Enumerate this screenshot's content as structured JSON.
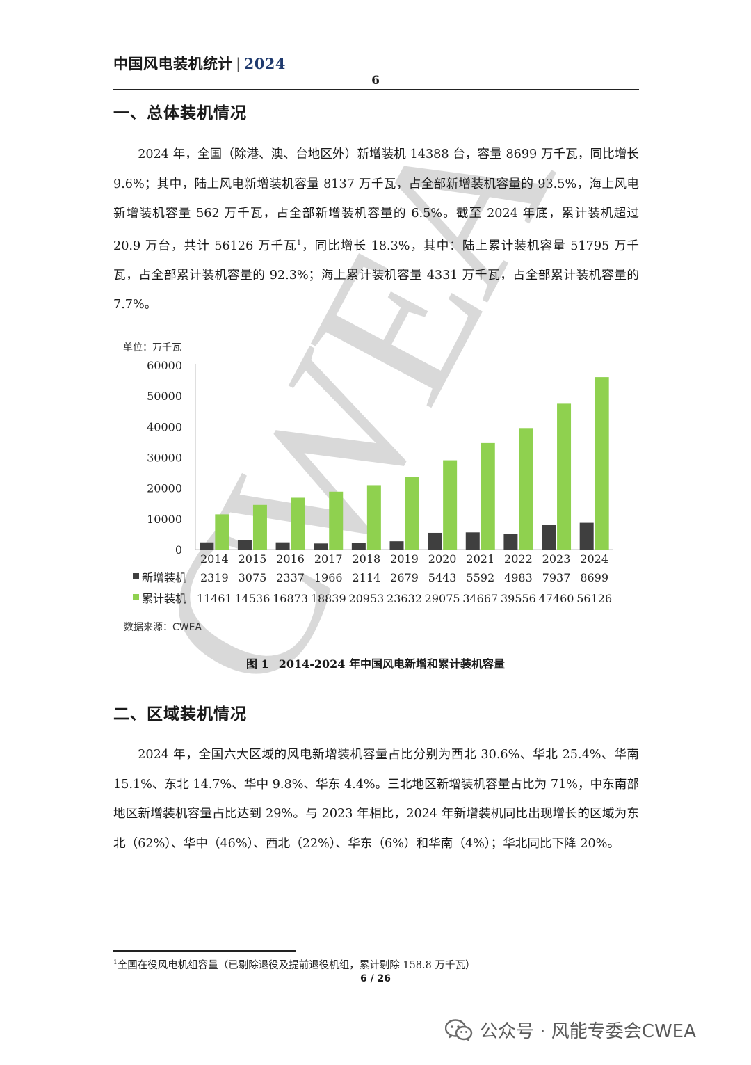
{
  "header": {
    "title": "中国风电装机统计",
    "separator": "|",
    "year": "2024",
    "page_number": "6"
  },
  "section1": {
    "heading": "一、总体装机情况",
    "paragraph_part1": "2024 年，全国（除港、澳、台地区外）新增装机 14388 台，容量 8699 万千瓦，同比增长 9.6%；其中，陆上风电新增装机容量 8137 万千瓦，占全部新增装机容量的 93.5%，海上风电新增装机容量 562 万千瓦，占全部新增装机容量的 6.5%。截至 2024 年底，累计装机超过 20.9 万台，共计 56126 万千瓦",
    "footnote_ref": "1",
    "paragraph_part2": "，同比增长 18.3%，其中：陆上累计装机容量 51795 万千瓦，占全部累计装机容量的 92.3%；海上累计装机容量 4331 万千瓦，占全部累计装机容量的 7.7%。"
  },
  "chart_data": {
    "type": "bar",
    "unit_label": "单位：万千瓦",
    "categories": [
      "2014",
      "2015",
      "2016",
      "2017",
      "2018",
      "2019",
      "2020",
      "2021",
      "2022",
      "2023",
      "2024"
    ],
    "series": [
      {
        "name": "新增装机",
        "color": "#3f3f3f",
        "values": [
          2319,
          3075,
          2337,
          1966,
          2114,
          2679,
          5443,
          5592,
          4983,
          7937,
          8699
        ]
      },
      {
        "name": "累计装机",
        "color": "#8fd14f",
        "values": [
          11461,
          14536,
          16873,
          18839,
          20953,
          23632,
          29075,
          34667,
          39556,
          47460,
          56126
        ]
      }
    ],
    "ylim": [
      0,
      60000
    ],
    "yticks": [
      0,
      10000,
      20000,
      30000,
      40000,
      50000,
      60000
    ],
    "data_table": true,
    "grid": false
  },
  "figure": {
    "source": "数据来源：CWEA",
    "caption_number": "图 1",
    "caption_text": "2014-2024 年中国风电新增和累计装机容量"
  },
  "section2": {
    "heading": "二、区域装机情况",
    "paragraph": "2024 年，全国六大区域的风电新增装机容量占比分别为西北 30.6%、华北 25.4%、华南 15.1%、东北 14.7%、华中 9.8%、华东 4.4%。三北地区新增装机容量占比为 71%，中东南部地区新增装机容量占比达到 29%。与 2023 年相比，2024 年新增装机同比出现增长的区域为东北（62%）、华中（46%）、西北（22%）、华东（6%）和华南（4%）；华北同比下降 20%。"
  },
  "footnote": {
    "marker": "1",
    "text": "全国在役风电机组容量（已剔除退役及提前退役机组，累计剔除 158.8 万千瓦）"
  },
  "footer": {
    "page_indicator": "6 / 26"
  },
  "watermark": {
    "text": "CWEA",
    "color": "#d9d9d9"
  },
  "wechat_banner": {
    "icon": "wechat-icon",
    "text": "公众号 · 风能专委会CWEA"
  }
}
